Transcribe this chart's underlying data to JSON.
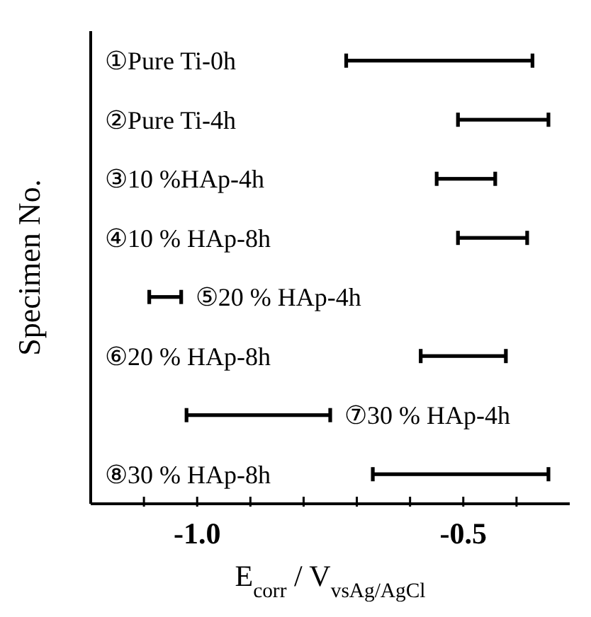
{
  "chart_data": {
    "type": "bar",
    "orientation": "horizontal",
    "xlabel": "E$_{corr}$ / V$_{vsAg/AgCl}$",
    "ylabel": "Specimen No.",
    "categories": [
      "①Pure Ti-0h",
      "②Pure Ti-4h",
      "③10 %HAp-4h",
      "④10 % HAp-8h",
      "⑤20 % HAp-4h",
      "⑥20 % HAp-8h",
      "⑦30 % HAp-4h",
      "⑧30 % HAp-8h"
    ],
    "base": [
      -0.72,
      -0.51,
      -0.55,
      -0.51,
      -1.09,
      -0.58,
      -1.02,
      -0.67
    ],
    "values": [
      0.35,
      0.17,
      0.11,
      0.13,
      0.06,
      0.16,
      0.27,
      0.33
    ],
    "color": "#000000",
    "xlim": [
      -1.2,
      -0.3
    ],
    "xticks": [
      {
        "value": -1.1,
        "label": null
      },
      {
        "value": -1.0,
        "label": "-1.0"
      },
      {
        "value": -0.9,
        "label": null
      },
      {
        "value": -0.8,
        "label": null
      },
      {
        "value": -0.7,
        "label": null
      },
      {
        "value": -0.6,
        "label": null
      },
      -0.5,
      {
        "value": -0.4,
        "label": null
      }
    ],
    "grid": false,
    "legend": false
  }
}
